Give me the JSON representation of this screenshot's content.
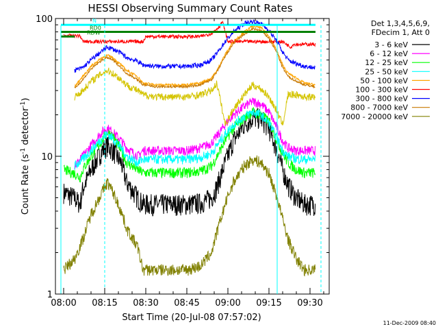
{
  "chart_data": {
    "type": "line",
    "title": "HESSI Observing Summary Count Rates",
    "xlabel": "Start Time (20-Jul-08 07:57:02)",
    "ylabel_main": "Count Rate (s",
    "ylabel_sup1": "-1",
    "ylabel_mid": " detector",
    "ylabel_sup2": "-1",
    "ylabel_end": ")",
    "yscale": "log",
    "ylim": [
      1,
      100
    ],
    "xlim_minutes": [
      -3,
      97
    ],
    "x_tick_labels": [
      "08:00",
      "08:15",
      "08:30",
      "08:45",
      "09:00",
      "09:15",
      "09:30"
    ],
    "x_tick_minutes": [
      0,
      15,
      30,
      45,
      60,
      75,
      90
    ],
    "y_tick_labels": [
      "1",
      "10",
      "100"
    ],
    "y_tick_values": [
      1,
      10,
      100
    ],
    "legend_header": [
      "Det 1,3,4,5,6,9,",
      "FDecim 1, Att 0"
    ],
    "legend_position": "right",
    "series": [
      {
        "name": "3 - 6 keV",
        "color": "#000000",
        "noise": 0.18,
        "x": [
          0,
          4,
          6,
          7,
          10,
          14,
          16,
          18,
          21,
          23,
          27,
          29,
          34,
          40,
          45,
          50,
          54,
          56,
          59,
          62,
          66,
          69,
          72,
          75,
          78,
          80,
          82,
          85,
          88,
          92
        ],
        "y": [
          5.5,
          5.0,
          4.5,
          5.8,
          8,
          11,
          12,
          11,
          9,
          6.5,
          5.0,
          4.5,
          4.5,
          4.5,
          4.5,
          4.6,
          5.0,
          6.0,
          9,
          13,
          17,
          19,
          19,
          16,
          11,
          8,
          6.2,
          5.0,
          4.5,
          4.5
        ]
      },
      {
        "name": "6 - 12 keV",
        "color": "#ff00ff",
        "noise": 0.08,
        "x": [
          4,
          7,
          10,
          14,
          16,
          18,
          21,
          23,
          27,
          29,
          34,
          40,
          45,
          50,
          54,
          56,
          59,
          62,
          66,
          69,
          72,
          75,
          78,
          80,
          82,
          85,
          88,
          92
        ],
        "y": [
          8.5,
          10,
          12,
          15,
          16,
          15,
          13,
          11.5,
          10,
          11,
          11,
          11,
          11,
          11.5,
          12.5,
          14,
          17,
          20,
          23,
          25,
          24,
          21,
          16,
          13,
          11.5,
          11,
          11,
          11
        ]
      },
      {
        "name": "12 - 25 keV",
        "color": "#00ff00",
        "noise": 0.09,
        "x": [
          0,
          4,
          6,
          7,
          10,
          14,
          16,
          18,
          21,
          23,
          27,
          29,
          34,
          40,
          45,
          50,
          54,
          56,
          59,
          62,
          66,
          69,
          72,
          75,
          78,
          80,
          82,
          85,
          88,
          92
        ],
        "y": [
          8,
          7.5,
          7,
          8,
          10,
          13,
          15,
          14,
          11,
          9,
          8,
          7.6,
          7.6,
          7.6,
          7.6,
          7.8,
          8.5,
          10,
          13,
          16,
          19,
          21,
          20,
          18,
          13,
          10.5,
          9,
          8,
          7.6,
          7.6
        ]
      },
      {
        "name": "25 - 50 keV",
        "color": "#00ffff",
        "noise": 0.08,
        "x": [
          4,
          7,
          10,
          14,
          16,
          18,
          21,
          23,
          27,
          29,
          34,
          40,
          45,
          50,
          54,
          56,
          59,
          62,
          66,
          69,
          72,
          75,
          78,
          80,
          82,
          85,
          88,
          92
        ],
        "y": [
          8.5,
          9.5,
          11,
          13.5,
          14.5,
          13.5,
          11.5,
          10,
          9,
          9.5,
          9.5,
          9.5,
          9.5,
          9.8,
          10.5,
          12,
          14.5,
          17,
          19.5,
          21,
          20,
          17.5,
          13.5,
          11,
          10,
          9.6,
          9.5,
          9.5
        ]
      },
      {
        "name": "50 - 100 keV",
        "color": "#ffa500",
        "noise": 0.02,
        "x": [
          4,
          7,
          10,
          14,
          16,
          18,
          21,
          23,
          27,
          29,
          34,
          40,
          45,
          50,
          54,
          56,
          59,
          62,
          66,
          69,
          72,
          75,
          78,
          80,
          82,
          85,
          88,
          92
        ],
        "y": [
          32,
          38,
          45,
          52,
          54,
          52,
          46,
          42,
          38,
          34,
          33,
          33,
          33,
          34,
          37,
          42,
          55,
          68,
          80,
          88,
          86,
          75,
          58,
          46,
          40,
          37,
          34,
          33
        ]
      },
      {
        "name": "100 - 300 keV",
        "color": "#ff0000",
        "noise": 0.03,
        "x": [
          0,
          6,
          7,
          15,
          20,
          29,
          30,
          40,
          50,
          54,
          57,
          58,
          60,
          65,
          70,
          72,
          75,
          80,
          83,
          84,
          88,
          92
        ],
        "y": [
          75,
          75,
          68,
          68,
          68,
          68,
          74,
          74,
          74,
          78,
          88,
          95,
          68,
          68,
          68,
          68,
          68,
          68,
          62,
          65,
          65,
          65
        ]
      },
      {
        "name": "300 - 800 keV",
        "color": "#0000ff",
        "noise": 0.04,
        "x": [
          4,
          7,
          10,
          14,
          16,
          18,
          21,
          23,
          27,
          29,
          34,
          40,
          45,
          50,
          54,
          56,
          59,
          62,
          66,
          69,
          72,
          75,
          78,
          80,
          82,
          85,
          88,
          92
        ],
        "y": [
          42,
          44,
          50,
          58,
          62,
          60,
          56,
          52,
          49,
          46,
          45,
          45,
          45,
          46,
          50,
          56,
          68,
          80,
          92,
          95,
          92,
          82,
          68,
          57,
          50,
          47,
          45,
          44
        ]
      },
      {
        "name": "800 - 7000 keV",
        "color": "#c87800",
        "noise": 0.02,
        "x": [
          4,
          7,
          10,
          14,
          16,
          18,
          21,
          23,
          27,
          29,
          34,
          40,
          45,
          50,
          54,
          56,
          59,
          62,
          66,
          69,
          72,
          75,
          78,
          80,
          82,
          85,
          88,
          92
        ],
        "y": [
          31,
          36,
          43,
          50,
          52,
          50,
          44,
          40,
          36,
          33,
          32,
          32,
          32,
          33,
          36,
          41,
          53,
          66,
          77,
          84,
          82,
          72,
          56,
          44,
          38,
          35,
          33,
          32
        ]
      },
      {
        "name": "7000 - 20000 keV",
        "color": "#808000",
        "noise": 0.1,
        "x": [
          0,
          4,
          7,
          10,
          14,
          16,
          18,
          21,
          23,
          27,
          29,
          34,
          40,
          45,
          50,
          54,
          56,
          59,
          62,
          66,
          69,
          72,
          75,
          78,
          80,
          82,
          85,
          88,
          92
        ],
        "y": [
          1.5,
          1.8,
          2.5,
          3.8,
          5.5,
          6.5,
          5.5,
          4,
          3,
          2.2,
          1.5,
          1.5,
          1.5,
          1.5,
          1.6,
          2,
          2.8,
          4.5,
          6.5,
          8.5,
          9.5,
          9,
          7.5,
          5,
          3.5,
          2.5,
          1.8,
          1.5,
          1.5
        ]
      },
      {
        "name": "",
        "color": "#d4c400",
        "noise": 0.06,
        "x": [
          4,
          7,
          10,
          14,
          16,
          18,
          21,
          23,
          27,
          29,
          34,
          40,
          45,
          50,
          54,
          56,
          59,
          62,
          66,
          69,
          72,
          75,
          78,
          80,
          82,
          85,
          88,
          92
        ],
        "y": [
          27,
          30,
          35,
          40,
          42,
          40,
          36,
          33,
          30,
          28,
          27,
          27,
          27,
          28,
          30,
          34,
          17,
          22,
          28,
          33,
          31,
          27,
          21,
          17,
          28,
          28,
          27,
          27
        ]
      }
    ],
    "flags": [
      {
        "label": "N",
        "color": "#00ffff",
        "start": -1,
        "end": 92,
        "level": 90
      },
      {
        "label": "RD0",
        "color": "#008000",
        "start": -1,
        "end": 92,
        "level": 80
      },
      {
        "label": "RDW",
        "color": "#008000",
        "start": -1,
        "end": 4,
        "level": 74
      }
    ],
    "vlines": [
      {
        "minute": -1,
        "style": "solid"
      },
      {
        "minute": 15,
        "style": "dashed"
      },
      {
        "minute": 78,
        "style": "solid"
      },
      {
        "minute": 94,
        "style": "dashed"
      }
    ]
  },
  "footer": {
    "timestamp": "11-Dec-2009 08:40"
  }
}
